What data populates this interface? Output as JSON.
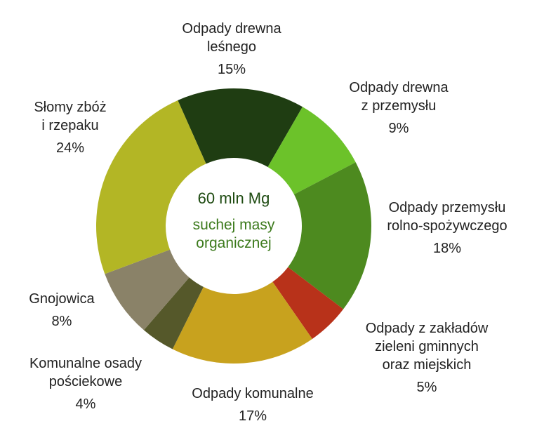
{
  "chart_data": {
    "type": "donut",
    "center_text": "60 mln Mg",
    "center_subtext": "suchej masy\norganicznej",
    "categories": [
      "Odpady drewna\nleśnego",
      "Odpady drewna\nz przemysłu",
      "Odpady przemysłu\nrolno-spożywczego",
      "Odpady z zakładów\nzieleni gminnych\noraz miejskich",
      "Odpady komunalne",
      "Komunalne osady\npościekowe",
      "Gnojowica",
      "Słomy zbóż\ni rzepaku"
    ],
    "values": [
      15,
      9,
      18,
      5,
      17,
      4,
      8,
      24
    ],
    "value_labels": [
      "15%",
      "9%",
      "18%",
      "5%",
      "17%",
      "4%",
      "8%",
      "24%"
    ],
    "colors": [
      "#1f3d12",
      "#6cc22a",
      "#4d8a1f",
      "#b8321a",
      "#c8a21e",
      "#55582a",
      "#8a8268",
      "#b3b625"
    ]
  }
}
